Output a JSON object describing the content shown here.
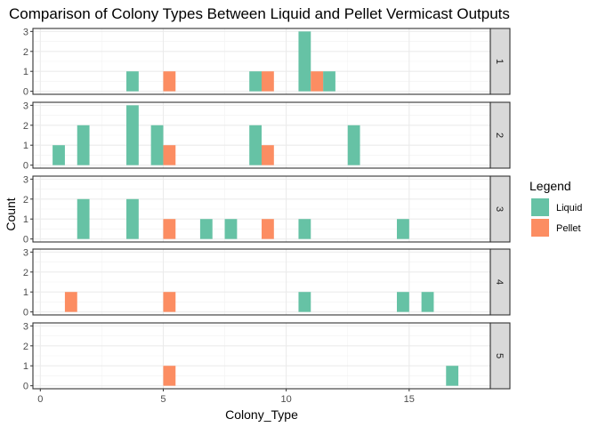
{
  "chart_data": {
    "type": "bar",
    "title": "Comparison of Colony Types Between Liquid and Pellet Vermicast Outputs",
    "xlabel": "Colony_Type",
    "ylabel": "Count",
    "xlim": [
      -0.3,
      18.3
    ],
    "ylim": [
      -0.15,
      3.15
    ],
    "x_ticks": [
      0,
      5,
      10,
      15
    ],
    "y_ticks": [
      0,
      1,
      2,
      3
    ],
    "facet_labels": [
      "1",
      "2",
      "3",
      "4",
      "5"
    ],
    "bar_width": 0.5,
    "grid": true,
    "legend": {
      "title": "Legend",
      "position": "right",
      "entries": [
        {
          "name": "Liquid",
          "color": "#66C2A5"
        },
        {
          "name": "Pellet",
          "color": "#FC8D62"
        }
      ]
    },
    "panels": [
      {
        "facet": "1",
        "series": [
          {
            "name": "Liquid",
            "points": [
              [
                3.75,
                1
              ],
              [
                8.75,
                1
              ],
              [
                10.75,
                3
              ],
              [
                11.75,
                1
              ]
            ]
          },
          {
            "name": "Pellet",
            "points": [
              [
                5.25,
                1
              ],
              [
                9.25,
                1
              ],
              [
                11.25,
                1
              ]
            ]
          }
        ]
      },
      {
        "facet": "2",
        "series": [
          {
            "name": "Liquid",
            "points": [
              [
                0.75,
                1
              ],
              [
                1.75,
                2
              ],
              [
                3.75,
                3
              ],
              [
                4.75,
                2
              ],
              [
                8.75,
                2
              ],
              [
                12.75,
                2
              ]
            ]
          },
          {
            "name": "Pellet",
            "points": [
              [
                5.25,
                1
              ],
              [
                9.25,
                1
              ]
            ]
          }
        ]
      },
      {
        "facet": "3",
        "series": [
          {
            "name": "Liquid",
            "points": [
              [
                1.75,
                2
              ],
              [
                3.75,
                2
              ],
              [
                6.75,
                1
              ],
              [
                7.75,
                1
              ],
              [
                10.75,
                1
              ],
              [
                14.75,
                1
              ]
            ]
          },
          {
            "name": "Pellet",
            "points": [
              [
                5.25,
                1
              ],
              [
                9.25,
                1
              ]
            ]
          }
        ]
      },
      {
        "facet": "4",
        "series": [
          {
            "name": "Liquid",
            "points": [
              [
                10.75,
                1
              ],
              [
                14.75,
                1
              ],
              [
                15.75,
                1
              ]
            ]
          },
          {
            "name": "Pellet",
            "points": [
              [
                1.25,
                1
              ],
              [
                5.25,
                1
              ]
            ]
          }
        ]
      },
      {
        "facet": "5",
        "series": [
          {
            "name": "Liquid",
            "points": [
              [
                16.75,
                1
              ]
            ]
          },
          {
            "name": "Pellet",
            "points": [
              [
                5.25,
                1
              ]
            ]
          }
        ]
      }
    ]
  }
}
